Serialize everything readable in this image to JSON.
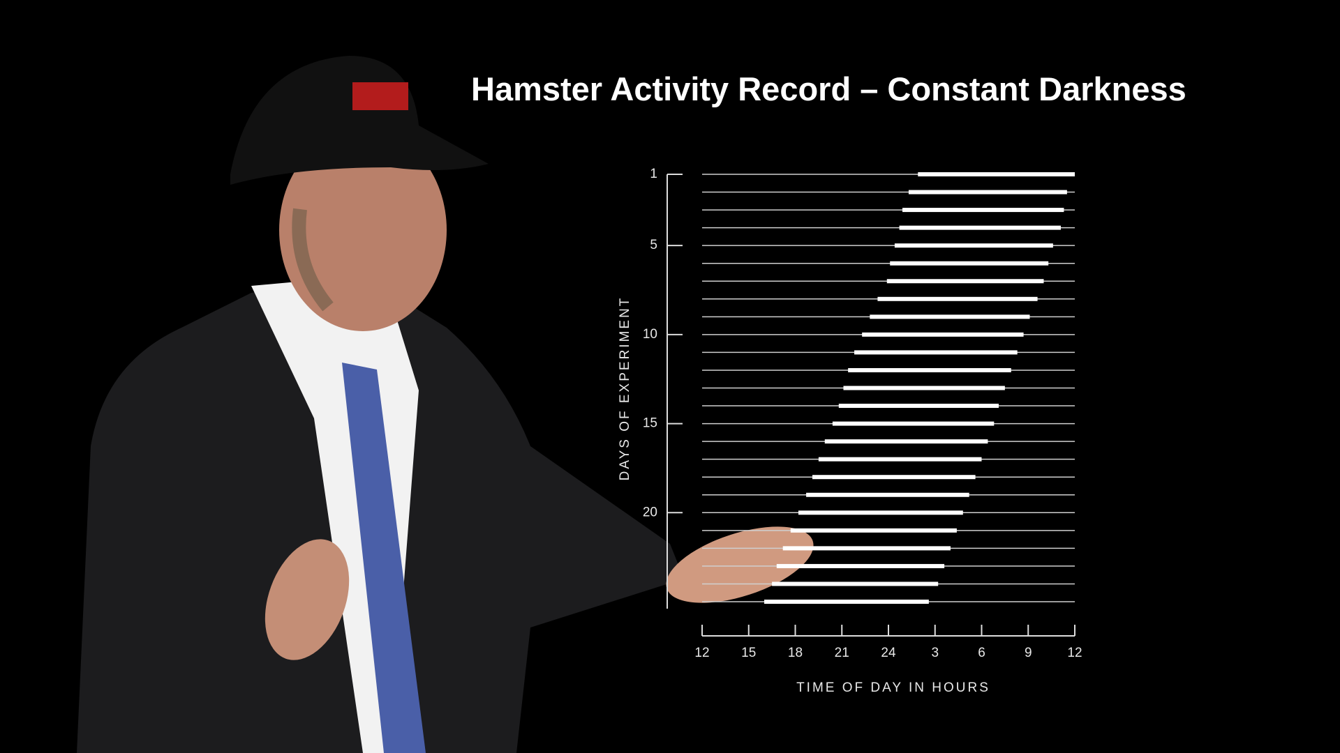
{
  "chart_data": {
    "type": "actogram",
    "title": "Hamster Activity Record – Constant Darkness",
    "xlabel": "TIME OF DAY IN HOURS",
    "ylabel": "DAYS OF EXPERIMENT",
    "days": [
      1,
      2,
      3,
      4,
      5,
      6,
      7,
      8,
      9,
      10,
      11,
      12,
      13,
      14,
      15,
      16,
      17,
      18,
      19,
      20,
      21,
      22,
      23,
      24,
      25
    ],
    "onset": [
      25.9,
      25.3,
      24.9,
      24.7,
      24.4,
      24.1,
      23.9,
      23.3,
      22.8,
      22.3,
      21.8,
      21.4,
      21.1,
      20.8,
      20.4,
      19.9,
      19.5,
      19.1,
      18.7,
      18.2,
      17.7,
      17.2,
      16.8,
      16.5,
      16.0
    ],
    "offset": [
      36,
      35.5,
      35.3,
      35.1,
      34.6,
      34.3,
      34.0,
      33.6,
      33.1,
      32.7,
      32.3,
      31.9,
      31.5,
      31.1,
      30.8,
      30.4,
      30.0,
      29.6,
      29.2,
      28.8,
      28.4,
      28.0,
      27.6,
      27.2,
      26.6
    ],
    "color": "#ffffff",
    "xlim": [
      12,
      36
    ],
    "xticks": [
      12,
      15,
      18,
      21,
      24,
      {
        "value": 27,
        "label": "3"
      },
      {
        "value": 30,
        "label": "6"
      },
      {
        "value": 33,
        "label": "9"
      },
      {
        "value": 36,
        "label": "12"
      }
    ],
    "ylim": [
      1,
      25
    ],
    "yticks": [
      1,
      5,
      10,
      15,
      20
    ]
  }
}
